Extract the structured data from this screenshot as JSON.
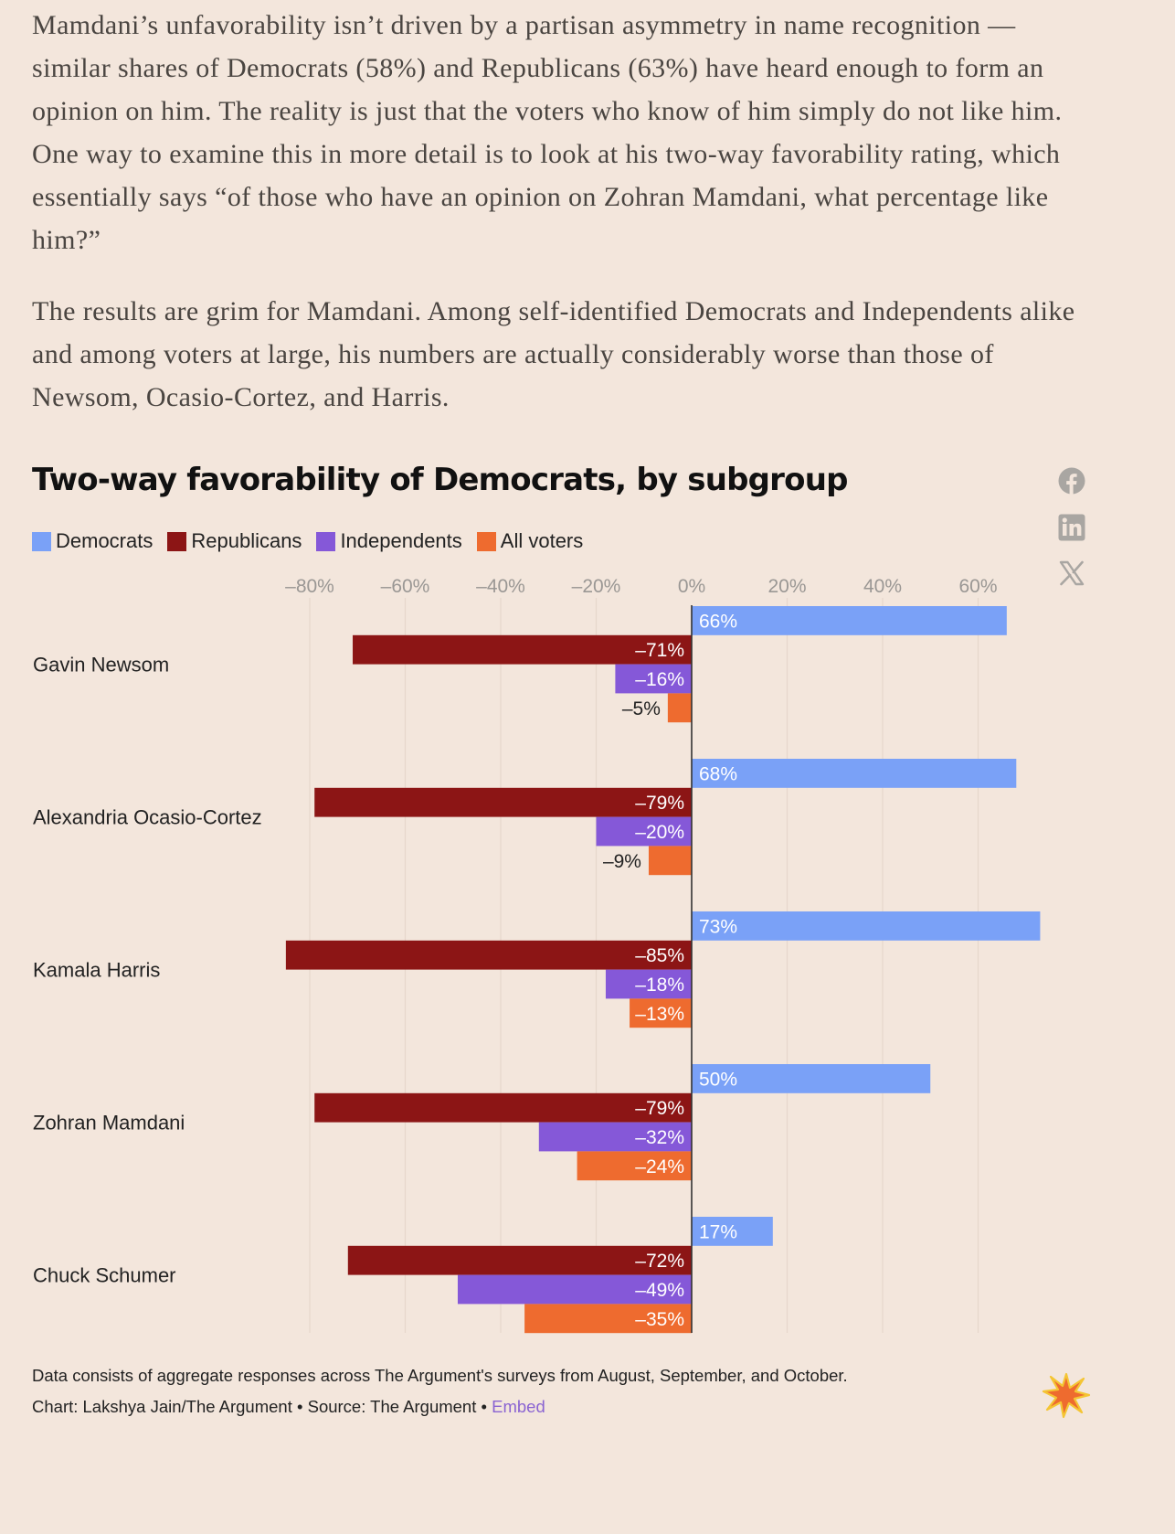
{
  "prose": {
    "paragraph_1": "Mamdani’s unfavorability isn’t driven by a partisan asymmetry in name recognition — similar shares of Democrats (58%) and Republicans (63%) have heard enough to form an opinion on him. The reality is just that the voters who know of him simply do not like him. One way to examine this in more detail is to look at his two-way favorability rating, which essentially says “of those who have an opinion on Zohran Mamdani, what percentage like him?”",
    "paragraph_2": "The results are grim for Mamdani. Among self-identified Democrats and Independents alike and among voters at large, his numbers are actually considerably worse than those of Newsom, Ocasio-Cortez, and Harris."
  },
  "share": {
    "facebook_icon": "facebook-icon",
    "linkedin_icon": "linkedin-icon",
    "x_icon": "x-icon"
  },
  "chart_data": {
    "type": "bar",
    "orientation": "horizontal",
    "title": "Two-way favorability of Democrats, by subgroup",
    "categories": [
      "Gavin Newsom",
      "Alexandria Ocasio-Cortez",
      "Kamala Harris",
      "Zohran Mamdani",
      "Chuck Schumer"
    ],
    "series": [
      {
        "name": "Democrats",
        "color": "#7aa1f7",
        "values": [
          66,
          68,
          73,
          50,
          17
        ]
      },
      {
        "name": "Republicans",
        "color": "#8c1515",
        "values": [
          -71,
          -79,
          -85,
          -79,
          -72
        ]
      },
      {
        "name": "Independents",
        "color": "#8558d8",
        "values": [
          -16,
          -20,
          -18,
          -32,
          -49
        ]
      },
      {
        "name": "All voters",
        "color": "#ee6b2f",
        "values": [
          -5,
          -9,
          -13,
          -24,
          -35
        ]
      }
    ],
    "xlim": [
      -85,
      73
    ],
    "xticks": [
      -80,
      -60,
      -40,
      -20,
      0,
      20,
      40,
      60
    ],
    "xtick_labels": [
      "–80%",
      "–60%",
      "–40%",
      "–20%",
      "0%",
      "20%",
      "40%",
      "60%"
    ],
    "data_labels": [
      [
        "66%",
        "68%",
        "73%",
        "50%",
        "17%"
      ],
      [
        "–71%",
        "–79%",
        "–85%",
        "–79%",
        "–72%"
      ],
      [
        "–16%",
        "–20%",
        "–18%",
        "–32%",
        "–49%"
      ],
      [
        "–5%",
        "–9%",
        "–13%",
        "–24%",
        "–35%"
      ]
    ],
    "grid": true,
    "legend_position": "top-left",
    "note": "Data consists of aggregate responses across The Argument's surveys from August, September, and October.",
    "credit": "Chart: Lakshya Jain/The Argument • Source: The Argument •",
    "embed_label": "Embed"
  }
}
